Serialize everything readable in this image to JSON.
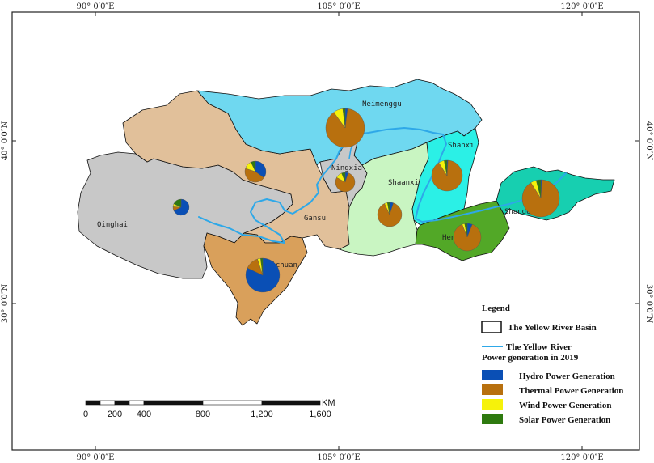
{
  "map": {
    "coords": {
      "top": [
        "90° 0′0″E",
        "105° 0′0″E",
        "120° 0′0″E"
      ],
      "bottom": [
        "90° 0′0″E",
        "105° 0′0″E",
        "120° 0′0″E"
      ],
      "left": [
        "40° 0′0″N",
        "30° 0′0″N"
      ],
      "right": [
        "40° 0′0″N",
        "30° 0′0″N"
      ]
    },
    "provinces": [
      {
        "name": "Neimenggu",
        "color": "#6FD8F0"
      },
      {
        "name": "Shanxi",
        "color": "#2BF0E6"
      },
      {
        "name": "Shandong",
        "color": "#17CFB0"
      },
      {
        "name": "Ningxia",
        "color": "#C8C8C8"
      },
      {
        "name": "Shaanxi",
        "color": "#C9F5C2"
      },
      {
        "name": "Henan",
        "color": "#52A827"
      },
      {
        "name": "Gansu",
        "color": "#E1C09A"
      },
      {
        "name": "Qinghai",
        "color": "#C8C8C8"
      },
      {
        "name": "Sichuan",
        "color": "#D9A05B"
      }
    ],
    "pies": [
      {
        "province": "Neimenggu",
        "hydro": 0.02,
        "thermal": 0.88,
        "wind": 0.08,
        "solar": 0.02
      },
      {
        "province": "Shanxi",
        "hydro": 0.01,
        "thermal": 0.9,
        "wind": 0.06,
        "solar": 0.03
      },
      {
        "province": "Shandong",
        "hydro": 0.01,
        "thermal": 0.9,
        "wind": 0.05,
        "solar": 0.04
      },
      {
        "province": "Ningxia",
        "hydro": 0.05,
        "thermal": 0.78,
        "wind": 0.11,
        "solar": 0.06
      },
      {
        "province": "Shaanxi",
        "hydro": 0.05,
        "thermal": 0.88,
        "wind": 0.04,
        "solar": 0.03
      },
      {
        "province": "Henan",
        "hydro": 0.06,
        "thermal": 0.88,
        "wind": 0.03,
        "solar": 0.03
      },
      {
        "province": "Gansu",
        "hydro": 0.35,
        "thermal": 0.45,
        "wind": 0.13,
        "solar": 0.07
      },
      {
        "province": "Qinghai",
        "hydro": 0.68,
        "thermal": 0.08,
        "wind": 0.06,
        "solar": 0.18
      },
      {
        "province": "Sichuan",
        "hydro": 0.82,
        "thermal": 0.13,
        "wind": 0.03,
        "solar": 0.02
      }
    ],
    "colors": {
      "hydro": "#0A4FB5",
      "thermal": "#B8700E",
      "wind": "#F6F20A",
      "solar": "#2E7A0F",
      "river": "#2EA8E8",
      "boundary": "#111111"
    },
    "legend": {
      "title": "Legend",
      "basin_label": "The Yellow River Basin",
      "river_label": "The Yellow River",
      "power_title": "Power generation in 2019",
      "items": [
        {
          "label": "Hydro Power Generation",
          "key": "hydro"
        },
        {
          "label": "Thermal Power Generation",
          "key": "thermal"
        },
        {
          "label": "Wind Power Generation",
          "key": "wind"
        },
        {
          "label": "Solar Power Generation",
          "key": "solar"
        }
      ]
    },
    "scale": {
      "unit": "KM",
      "labels": [
        "0",
        "200",
        "400",
        "800",
        "1,200",
        "1,600"
      ]
    }
  }
}
